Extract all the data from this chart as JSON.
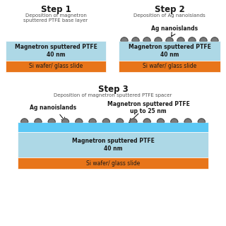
{
  "bg_color": "#ffffff",
  "orange_color": "#E8751A",
  "light_blue_color": "#ADD8E6",
  "cyan_color": "#5BC8F5",
  "gray_island": "#7a7a7a",
  "gray_island_edge": "#444444",
  "text_dark": "#1a1a1a",
  "text_gray": "#555555",
  "step1_title": "Step 1",
  "step1_sub": "Deposition of magnetron\nsputtered PTFE base layer",
  "step2_title": "Step 2",
  "step2_sub": "Deposition of Ag nanoislands",
  "step2_ann": "Ag nanoislands",
  "step3_title": "Step 3",
  "step3_sub": "Deposition of magnetron sputtered PTFE spacer",
  "step3_ann1": "Ag nanoislands",
  "step3_ann2": "Magnetron sputtered PTFE\nup to 25 nm",
  "ptfe_label": "Magnetron sputtered PTFE\n40 nm",
  "si_label": "Si wafer/ glass slide",
  "title_fontsize": 8.5,
  "sub_fontsize": 5.0,
  "layer_fontsize": 5.5,
  "ann_fontsize": 5.5
}
